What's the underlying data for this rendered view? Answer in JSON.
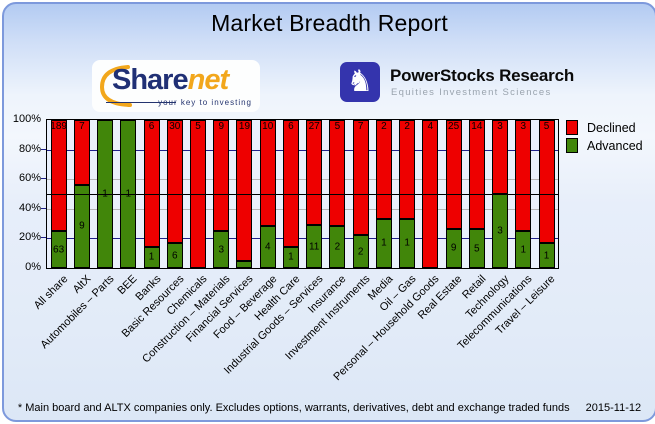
{
  "title": "Market Breadth Report",
  "logos": {
    "sharenet": {
      "text_main": "Share",
      "text_accent": "net",
      "tagline": "your key to investing"
    },
    "powerstocks": {
      "knight_icon": "chess-knight",
      "knight_glyph": "♞",
      "title": "PowerStocks  Research",
      "tagline": "Equities Investment Sciences"
    }
  },
  "legend": [
    {
      "label": "Declined",
      "color": "#ee0000"
    },
    {
      "label": "Advanced",
      "color": "#41860a"
    }
  ],
  "footer": {
    "note": "* Main board and ALTX companies only. Excludes options, warrants, derivatives, debt and exchange traded funds",
    "date": "2015-11-12"
  },
  "chart_data": {
    "type": "bar",
    "stacked": true,
    "normalized": "percent",
    "title": "Market Breadth Report",
    "xlabel": "",
    "ylabel": "",
    "ylim": [
      0,
      100
    ],
    "y_ticks": [
      "0%",
      "20%",
      "40%",
      "60%",
      "80%",
      "100%"
    ],
    "gridlines": [
      {
        "pct": 20,
        "color": "#20208a"
      },
      {
        "pct": 40,
        "color": "#b6b6b6"
      },
      {
        "pct": 50,
        "color": "#000000"
      },
      {
        "pct": 60,
        "color": "#b6b6b6"
      },
      {
        "pct": 80,
        "color": "#20208a"
      }
    ],
    "legend_position": "top-right",
    "categories": [
      "All share",
      "AltX",
      "Automobiles – Parts",
      "BEE",
      "Banks",
      "Basic Resources",
      "Chemicals",
      "Construction – Materials",
      "Financial Services",
      "Food – Beverage",
      "Health Care",
      "Industrial Goods – Services",
      "Insurance",
      "Investment Instruments",
      "Media",
      "Oil – Gas",
      "Personal – Household Goods",
      "Real Estate",
      "Retail",
      "Technology",
      "Telecommunications",
      "Travel – Leisure"
    ],
    "series": [
      {
        "name": "Declined",
        "color": "#ee0000",
        "values": [
          189,
          7,
          0,
          0,
          6,
          30,
          5,
          9,
          19,
          10,
          6,
          27,
          5,
          7,
          2,
          2,
          4,
          25,
          14,
          3,
          3,
          5
        ]
      },
      {
        "name": "Advanced",
        "color": "#41860a",
        "values": [
          63,
          9,
          1,
          1,
          1,
          6,
          0,
          3,
          1,
          4,
          1,
          11,
          2,
          2,
          1,
          1,
          0,
          9,
          5,
          3,
          1,
          1
        ]
      }
    ]
  }
}
